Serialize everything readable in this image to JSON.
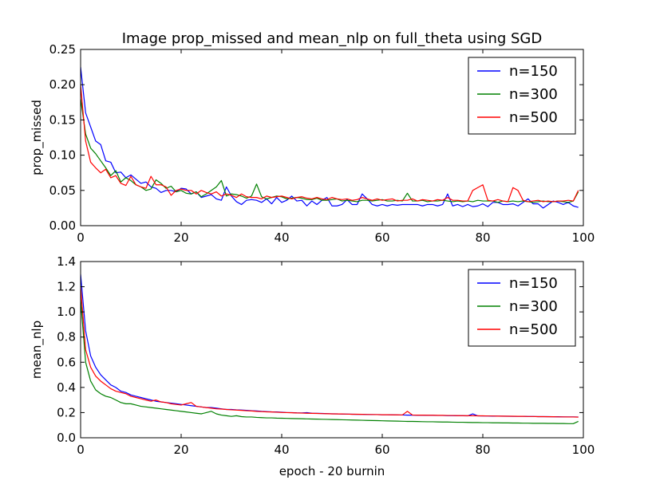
{
  "title": "Image prop_missed and mean_nlp on full_theta using SGD",
  "colors": {
    "n150": "#0000ff",
    "n300": "#008000",
    "n500": "#ff0000"
  },
  "chart_data": [
    {
      "type": "line",
      "xlabel": "",
      "ylabel": "prop_missed",
      "xlim": [
        0,
        100
      ],
      "ylim": [
        0,
        0.25
      ],
      "xticks": [
        "0",
        "20",
        "40",
        "60",
        "80",
        "100"
      ],
      "yticks": [
        "0.00",
        "0.05",
        "0.10",
        "0.15",
        "0.20",
        "0.25"
      ],
      "legend_position": "top-right",
      "series": [
        {
          "name": "n=150",
          "color_key": "n150",
          "values": [
            0.225,
            0.16,
            0.14,
            0.12,
            0.115,
            0.092,
            0.09,
            0.075,
            0.076,
            0.068,
            0.072,
            0.066,
            0.06,
            0.062,
            0.055,
            0.053,
            0.047,
            0.05,
            0.05,
            0.048,
            0.053,
            0.052,
            0.045,
            0.048,
            0.04,
            0.042,
            0.044,
            0.038,
            0.036,
            0.055,
            0.042,
            0.034,
            0.03,
            0.036,
            0.037,
            0.036,
            0.033,
            0.038,
            0.031,
            0.04,
            0.033,
            0.036,
            0.042,
            0.035,
            0.036,
            0.028,
            0.035,
            0.03,
            0.036,
            0.04,
            0.028,
            0.028,
            0.03,
            0.037,
            0.03,
            0.03,
            0.045,
            0.038,
            0.03,
            0.028,
            0.03,
            0.028,
            0.03,
            0.029,
            0.03,
            0.03,
            0.03,
            0.03,
            0.028,
            0.03,
            0.03,
            0.028,
            0.03,
            0.045,
            0.028,
            0.03,
            0.027,
            0.03,
            0.027,
            0.028,
            0.031,
            0.027,
            0.033,
            0.033,
            0.03,
            0.03,
            0.031,
            0.028,
            0.033,
            0.038,
            0.031,
            0.031,
            0.025,
            0.03,
            0.035,
            0.033,
            0.03,
            0.033,
            0.028,
            0.026
          ]
        },
        {
          "name": "n=300",
          "color_key": "n300",
          "values": [
            0.18,
            0.13,
            0.11,
            0.102,
            0.092,
            0.082,
            0.071,
            0.078,
            0.062,
            0.068,
            0.064,
            0.058,
            0.055,
            0.05,
            0.052,
            0.065,
            0.06,
            0.053,
            0.056,
            0.048,
            0.05,
            0.046,
            0.045,
            0.048,
            0.041,
            0.045,
            0.05,
            0.055,
            0.064,
            0.042,
            0.045,
            0.044,
            0.042,
            0.039,
            0.042,
            0.059,
            0.041,
            0.038,
            0.04,
            0.042,
            0.041,
            0.038,
            0.039,
            0.04,
            0.039,
            0.037,
            0.037,
            0.039,
            0.036,
            0.036,
            0.037,
            0.038,
            0.035,
            0.036,
            0.035,
            0.034,
            0.036,
            0.036,
            0.035,
            0.036,
            0.037,
            0.035,
            0.035,
            0.036,
            0.035,
            0.046,
            0.035,
            0.035,
            0.036,
            0.034,
            0.035,
            0.035,
            0.036,
            0.035,
            0.034,
            0.035,
            0.034,
            0.035,
            0.034,
            0.036,
            0.035,
            0.035,
            0.035,
            0.033,
            0.035,
            0.034,
            0.035,
            0.034,
            0.035,
            0.034,
            0.033,
            0.034,
            0.035,
            0.034,
            0.034,
            0.035,
            0.034,
            0.033,
            0.035,
            0.048
          ]
        },
        {
          "name": "n=500",
          "color_key": "n500",
          "values": [
            0.2,
            0.12,
            0.09,
            0.082,
            0.075,
            0.08,
            0.068,
            0.071,
            0.06,
            0.057,
            0.07,
            0.058,
            0.055,
            0.053,
            0.07,
            0.058,
            0.058,
            0.055,
            0.043,
            0.05,
            0.052,
            0.05,
            0.05,
            0.045,
            0.05,
            0.047,
            0.045,
            0.048,
            0.042,
            0.045,
            0.043,
            0.04,
            0.045,
            0.041,
            0.04,
            0.04,
            0.038,
            0.042,
            0.04,
            0.041,
            0.042,
            0.04,
            0.038,
            0.04,
            0.041,
            0.039,
            0.038,
            0.04,
            0.038,
            0.037,
            0.04,
            0.038,
            0.037,
            0.038,
            0.036,
            0.037,
            0.04,
            0.038,
            0.036,
            0.038,
            0.036,
            0.037,
            0.038,
            0.035,
            0.036,
            0.036,
            0.038,
            0.035,
            0.037,
            0.036,
            0.035,
            0.037,
            0.036,
            0.04,
            0.036,
            0.036,
            0.035,
            0.035,
            0.05,
            0.054,
            0.058,
            0.036,
            0.035,
            0.037,
            0.035,
            0.034,
            0.054,
            0.05,
            0.036,
            0.034,
            0.035,
            0.036,
            0.034,
            0.035,
            0.034,
            0.035,
            0.035,
            0.036,
            0.035,
            0.05
          ]
        }
      ]
    },
    {
      "type": "line",
      "xlabel": "epoch - 20 burnin",
      "ylabel": "mean_nlp",
      "xlim": [
        0,
        100
      ],
      "ylim": [
        0,
        1.4
      ],
      "xticks": [
        "0",
        "20",
        "40",
        "60",
        "80",
        "100"
      ],
      "yticks": [
        "0.0",
        "0.2",
        "0.4",
        "0.6",
        "0.8",
        "1.0",
        "1.2",
        "1.4"
      ],
      "legend_position": "top-right",
      "series": [
        {
          "name": "n=150",
          "color_key": "n150",
          "values": [
            1.3,
            0.85,
            0.65,
            0.56,
            0.5,
            0.46,
            0.42,
            0.4,
            0.37,
            0.36,
            0.34,
            0.33,
            0.32,
            0.31,
            0.3,
            0.29,
            0.285,
            0.28,
            0.275,
            0.27,
            0.265,
            0.26,
            0.255,
            0.25,
            0.245,
            0.24,
            0.24,
            0.235,
            0.23,
            0.225,
            0.225,
            0.222,
            0.22,
            0.218,
            0.215,
            0.213,
            0.21,
            0.208,
            0.206,
            0.205,
            0.203,
            0.2,
            0.2,
            0.198,
            0.197,
            0.2,
            0.195,
            0.194,
            0.193,
            0.192,
            0.19,
            0.19,
            0.188,
            0.188,
            0.187,
            0.186,
            0.186,
            0.185,
            0.184,
            0.184,
            0.183,
            0.183,
            0.182,
            0.181,
            0.181,
            0.18,
            0.18,
            0.179,
            0.179,
            0.178,
            0.178,
            0.177,
            0.177,
            0.176,
            0.176,
            0.175,
            0.175,
            0.174,
            0.19,
            0.174,
            0.173,
            0.173,
            0.172,
            0.172,
            0.171,
            0.171,
            0.17,
            0.17,
            0.17,
            0.169,
            0.169,
            0.168,
            0.168,
            0.168,
            0.167,
            0.167,
            0.166,
            0.166,
            0.166,
            0.165
          ]
        },
        {
          "name": "n=300",
          "color_key": "n300",
          "values": [
            1.1,
            0.6,
            0.45,
            0.38,
            0.35,
            0.33,
            0.32,
            0.3,
            0.28,
            0.27,
            0.27,
            0.26,
            0.25,
            0.245,
            0.24,
            0.235,
            0.23,
            0.225,
            0.22,
            0.215,
            0.21,
            0.205,
            0.2,
            0.195,
            0.19,
            0.2,
            0.21,
            0.19,
            0.18,
            0.175,
            0.17,
            0.175,
            0.168,
            0.165,
            0.165,
            0.162,
            0.16,
            0.158,
            0.158,
            0.156,
            0.155,
            0.154,
            0.153,
            0.152,
            0.151,
            0.15,
            0.149,
            0.148,
            0.147,
            0.146,
            0.145,
            0.144,
            0.143,
            0.142,
            0.141,
            0.14,
            0.139,
            0.138,
            0.137,
            0.136,
            0.135,
            0.134,
            0.133,
            0.132,
            0.131,
            0.13,
            0.13,
            0.129,
            0.128,
            0.127,
            0.127,
            0.126,
            0.125,
            0.125,
            0.124,
            0.123,
            0.123,
            0.122,
            0.121,
            0.121,
            0.12,
            0.12,
            0.119,
            0.119,
            0.118,
            0.118,
            0.117,
            0.117,
            0.116,
            0.116,
            0.115,
            0.115,
            0.115,
            0.114,
            0.114,
            0.113,
            0.113,
            0.112,
            0.112,
            0.13
          ]
        },
        {
          "name": "n=500",
          "color_key": "n500",
          "values": [
            1.2,
            0.7,
            0.56,
            0.49,
            0.45,
            0.42,
            0.39,
            0.37,
            0.36,
            0.35,
            0.33,
            0.32,
            0.31,
            0.3,
            0.29,
            0.3,
            0.285,
            0.28,
            0.27,
            0.265,
            0.26,
            0.27,
            0.28,
            0.25,
            0.245,
            0.24,
            0.235,
            0.23,
            0.228,
            0.225,
            0.222,
            0.22,
            0.218,
            0.215,
            0.213,
            0.21,
            0.208,
            0.206,
            0.205,
            0.203,
            0.201,
            0.2,
            0.199,
            0.197,
            0.196,
            0.195,
            0.194,
            0.193,
            0.192,
            0.191,
            0.19,
            0.189,
            0.189,
            0.188,
            0.187,
            0.187,
            0.186,
            0.185,
            0.185,
            0.184,
            0.183,
            0.183,
            0.182,
            0.182,
            0.181,
            0.21,
            0.181,
            0.18,
            0.18,
            0.179,
            0.179,
            0.178,
            0.178,
            0.177,
            0.177,
            0.176,
            0.176,
            0.175,
            0.175,
            0.174,
            0.174,
            0.173,
            0.173,
            0.172,
            0.172,
            0.171,
            0.171,
            0.17,
            0.17,
            0.169,
            0.169,
            0.168,
            0.168,
            0.167,
            0.167,
            0.166,
            0.166,
            0.165,
            0.165,
            0.164
          ]
        }
      ]
    }
  ]
}
